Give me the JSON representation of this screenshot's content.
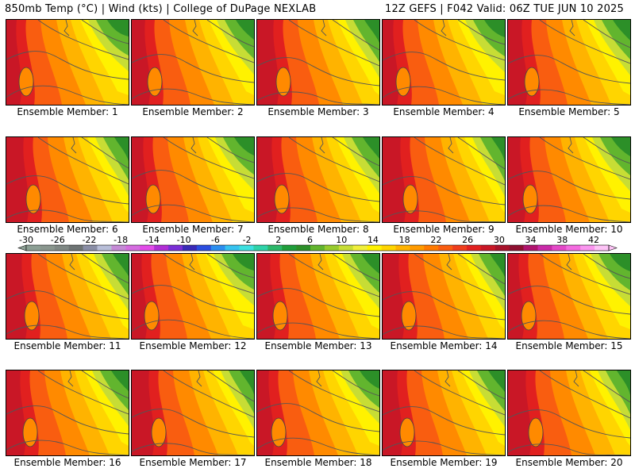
{
  "header": {
    "left": "850mb Temp (°C) | Wind (kts) | College of DuPage NEXLAB",
    "right": "12Z GEFS | F042 Valid: 06Z TUE JUN 10 2025"
  },
  "panels": [
    {
      "label": "Ensemble Member: 1"
    },
    {
      "label": "Ensemble Member: 2"
    },
    {
      "label": "Ensemble Member: 3"
    },
    {
      "label": "Ensemble Member: 4"
    },
    {
      "label": "Ensemble Member: 5"
    },
    {
      "label": "Ensemble Member: 6"
    },
    {
      "label": "Ensemble Member: 7"
    },
    {
      "label": "Ensemble Member: 8"
    },
    {
      "label": "Ensemble Member: 9"
    },
    {
      "label": "Ensemble Member: 10"
    },
    {
      "label": "Ensemble Member: 11"
    },
    {
      "label": "Ensemble Member: 12"
    },
    {
      "label": "Ensemble Member: 13"
    },
    {
      "label": "Ensemble Member: 14"
    },
    {
      "label": "Ensemble Member: 15"
    },
    {
      "label": "Ensemble Member: 16"
    },
    {
      "label": "Ensemble Member: 17"
    },
    {
      "label": "Ensemble Member: 18"
    },
    {
      "label": "Ensemble Member: 19"
    },
    {
      "label": "Ensemble Member: 20"
    }
  ],
  "colorbar": {
    "labels": [
      "-30",
      "-26",
      "-22",
      "-18",
      "-14",
      "-10",
      "-6",
      "-2",
      "2",
      "6",
      "10",
      "14",
      "18",
      "22",
      "26",
      "30",
      "34",
      "38",
      "42"
    ],
    "colors": [
      "#8c9f94",
      "#8a968e",
      "#7f8884",
      "#6e7474",
      "#8a8ea6",
      "#b8bed8",
      "#c58ad6",
      "#d56ce0",
      "#e24ce9",
      "#b12ed5",
      "#7a2fd6",
      "#3a2ab8",
      "#2b4ee0",
      "#2b8ef0",
      "#36c3f0",
      "#3de0e0",
      "#2ed3a9",
      "#2cb86a",
      "#1f9e3b",
      "#2c8f28",
      "#62b52e",
      "#97cb2d",
      "#c7dd35",
      "#f0ef3c",
      "#fff200",
      "#ffd500",
      "#ffb300",
      "#ff9a00",
      "#ff7a00",
      "#f95d10",
      "#ef3e1c",
      "#e1201f",
      "#c91726",
      "#a8122b",
      "#8e1030",
      "#b0146e",
      "#c92aa8",
      "#e449c8",
      "#f46be0",
      "#fa96ef",
      "#fdc3f6"
    ]
  },
  "palette": {
    "green_dark": "#2c8f28",
    "green": "#62b52e",
    "yellowgreen": "#c7dd35",
    "yellow": "#fff200",
    "orange_light": "#ffd500",
    "orange": "#ffb300",
    "orange_dark": "#ff8a00",
    "redorange": "#f95d10",
    "red": "#e1201f",
    "red_dark": "#c91726"
  }
}
